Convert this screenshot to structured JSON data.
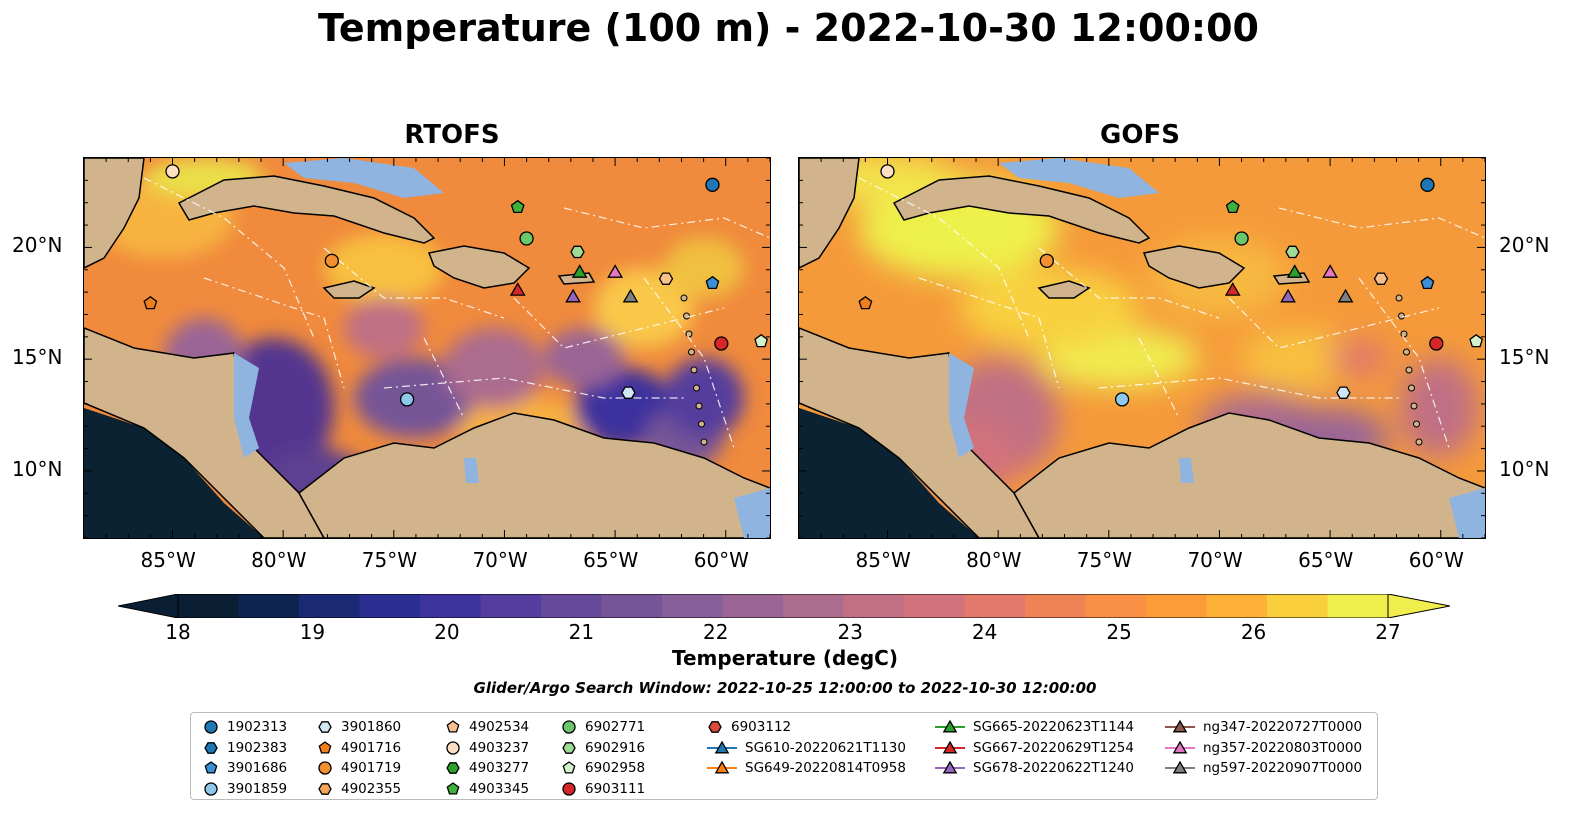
{
  "title": "Temperature (100 m) - 2022-10-30 12:00:00",
  "panels": [
    {
      "title": "RTOFS",
      "variant": "rtofs"
    },
    {
      "title": "GOFS",
      "variant": "gofs"
    }
  ],
  "lon_ticks": [
    "85°W",
    "80°W",
    "75°W",
    "70°W",
    "65°W",
    "60°W"
  ],
  "lat_ticks": [
    "20°N",
    "15°N",
    "10°N"
  ],
  "colorbar": {
    "min": 18,
    "max": 27,
    "step": 0.5,
    "ticks": [
      "18",
      "19",
      "20",
      "21",
      "22",
      "23",
      "24",
      "25",
      "26",
      "27"
    ],
    "label": "Temperature (degC)",
    "colors": [
      "#0a1f33",
      "#0d2450",
      "#1a2a75",
      "#2b2f92",
      "#3d339d",
      "#543d9e",
      "#654a9a",
      "#765497",
      "#87609a",
      "#9a6595",
      "#ac6c8e",
      "#c06f84",
      "#d2727a",
      "#e2796a",
      "#ef8356",
      "#f88f45",
      "#fc9c39",
      "#fdb237",
      "#f9cf3e",
      "#f0ee4c"
    ]
  },
  "search_window": "Glider/Argo Search Window: 2022-10-25 12:00:00 to 2022-10-30 12:00:00",
  "legend": [
    [
      {
        "label": "1902313",
        "marker": "circle",
        "color": "#1f77b4"
      },
      {
        "label": "1902383",
        "marker": "hexagon",
        "color": "#1f77b4"
      },
      {
        "label": "3901686",
        "marker": "pentagon",
        "color": "#3b8fd6"
      },
      {
        "label": "3901859",
        "marker": "circle",
        "color": "#8ec8ea"
      }
    ],
    [
      {
        "label": "3901860",
        "marker": "hexagon",
        "color": "#cfe6f5"
      },
      {
        "label": "4901716",
        "marker": "pentagon",
        "color": "#f07e1b"
      },
      {
        "label": "4901719",
        "marker": "circle",
        "color": "#f38f2e"
      },
      {
        "label": "4902355",
        "marker": "hexagon",
        "color": "#f7a45a"
      }
    ],
    [
      {
        "label": "4902534",
        "marker": "pentagon",
        "color": "#f9c08c"
      },
      {
        "label": "4903237",
        "marker": "circle",
        "color": "#fde0c4"
      },
      {
        "label": "4903277",
        "marker": "hexagon",
        "color": "#2ca02c"
      },
      {
        "label": "4903345",
        "marker": "pentagon",
        "color": "#3fb03a"
      }
    ],
    [
      {
        "label": "6902771",
        "marker": "circle",
        "color": "#6cc66a"
      },
      {
        "label": "6902916",
        "marker": "hexagon",
        "color": "#9ddc96"
      },
      {
        "label": "6902958",
        "marker": "pentagon",
        "color": "#d3f2cc"
      },
      {
        "label": "6903111",
        "marker": "circle",
        "color": "#d62728"
      }
    ],
    [
      {
        "label": "6903112",
        "marker": "hexagon",
        "color": "#d94a3a"
      },
      {
        "label": "SG610-20220621T1130",
        "marker": "triangle-line",
        "color": "#1f77b4"
      },
      {
        "label": "SG649-20220814T0958",
        "marker": "triangle-line",
        "color": "#ff7f0e"
      }
    ],
    [
      {
        "label": "SG665-20220623T1144",
        "marker": "triangle-line",
        "color": "#2ca02c"
      },
      {
        "label": "SG667-20220629T1254",
        "marker": "triangle-line",
        "color": "#d62728"
      },
      {
        "label": "SG678-20220622T1240",
        "marker": "triangle-line",
        "color": "#9467bd"
      }
    ],
    [
      {
        "label": "ng347-20220727T0000",
        "marker": "triangle-line",
        "color": "#8c564b"
      },
      {
        "label": "ng357-20220803T0000",
        "marker": "triangle-line",
        "color": "#e377c2"
      },
      {
        "label": "ng597-20220907T0000",
        "marker": "triangle-line",
        "color": "#7f7f7f"
      }
    ]
  ],
  "map_markers": [
    {
      "lon": -85.0,
      "lat": 23.4,
      "marker": "circle",
      "color": "#fde0c4"
    },
    {
      "lon": -60.6,
      "lat": 22.8,
      "marker": "circle",
      "color": "#1f77b4"
    },
    {
      "lon": -69.4,
      "lat": 21.8,
      "marker": "pentagon",
      "color": "#3fb03a"
    },
    {
      "lon": -69.0,
      "lat": 20.4,
      "marker": "circle",
      "color": "#6cc66a"
    },
    {
      "lon": -66.7,
      "lat": 19.8,
      "marker": "hexagon",
      "color": "#9ddc96"
    },
    {
      "lon": -77.8,
      "lat": 19.4,
      "marker": "circle",
      "color": "#f38f2e"
    },
    {
      "lon": -66.6,
      "lat": 18.9,
      "marker": "triangle",
      "color": "#2ca02c"
    },
    {
      "lon": -65.0,
      "lat": 18.9,
      "marker": "triangle",
      "color": "#e377c2"
    },
    {
      "lon": -62.7,
      "lat": 18.6,
      "marker": "hexagon",
      "color": "#f9c08c"
    },
    {
      "lon": -60.6,
      "lat": 18.4,
      "marker": "pentagon",
      "color": "#3b8fd6"
    },
    {
      "lon": -69.4,
      "lat": 18.1,
      "marker": "triangle",
      "color": "#d62728"
    },
    {
      "lon": -66.9,
      "lat": 17.8,
      "marker": "triangle",
      "color": "#9467bd"
    },
    {
      "lon": -64.3,
      "lat": 17.8,
      "marker": "triangle",
      "color": "#7f7f7f"
    },
    {
      "lon": -86.0,
      "lat": 17.5,
      "marker": "pentagon",
      "color": "#f07e1b"
    },
    {
      "lon": -58.4,
      "lat": 15.8,
      "marker": "pentagon",
      "color": "#d3f2cc"
    },
    {
      "lon": -60.2,
      "lat": 15.7,
      "marker": "circle",
      "color": "#d62728"
    },
    {
      "lon": -64.4,
      "lat": 13.5,
      "marker": "hexagon",
      "color": "#cfe6f5"
    },
    {
      "lon": -74.4,
      "lat": 13.2,
      "marker": "circle",
      "color": "#8ec8ea"
    }
  ]
}
